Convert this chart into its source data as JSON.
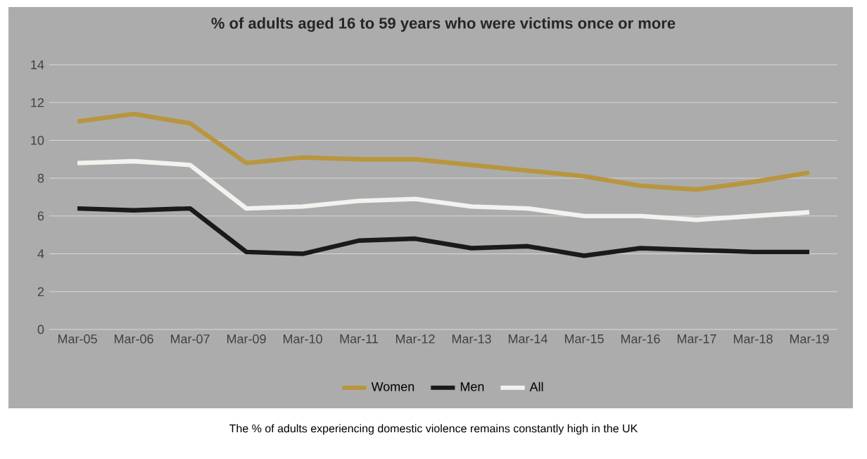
{
  "chart_data": {
    "type": "line",
    "title": "% of adults aged 16 to 59 years who were victims once or more",
    "categories": [
      "Mar-05",
      "Mar-06",
      "Mar-07",
      "Mar-09",
      "Mar-10",
      "Mar-11",
      "Mar-12",
      "Mar-13",
      "Mar-14",
      "Mar-15",
      "Mar-16",
      "Mar-17",
      "Mar-18",
      "Mar-19"
    ],
    "series": [
      {
        "name": "Women",
        "color": "#b8963e",
        "values": [
          11.0,
          11.4,
          10.9,
          8.8,
          9.1,
          9.0,
          9.0,
          8.7,
          8.4,
          8.1,
          7.6,
          7.4,
          7.8,
          8.3
        ]
      },
      {
        "name": "Men",
        "color": "#1a1a1a",
        "values": [
          6.4,
          6.3,
          6.4,
          4.1,
          4.0,
          4.7,
          4.8,
          4.3,
          4.4,
          3.9,
          4.3,
          4.2,
          4.1,
          4.1
        ]
      },
      {
        "name": "All",
        "color": "#f4f2ee",
        "values": [
          8.8,
          8.9,
          8.7,
          6.4,
          6.5,
          6.8,
          6.9,
          6.5,
          6.4,
          6.0,
          6.0,
          5.8,
          6.0,
          6.2
        ]
      }
    ],
    "ylim": [
      0,
      14
    ],
    "yticks": [
      0,
      2,
      4,
      6,
      8,
      10,
      12,
      14
    ],
    "grid": "y",
    "legend": "bottom",
    "annotations": [
      "The % of adults experiencing domestic violence remains constantly high in the UK"
    ]
  }
}
